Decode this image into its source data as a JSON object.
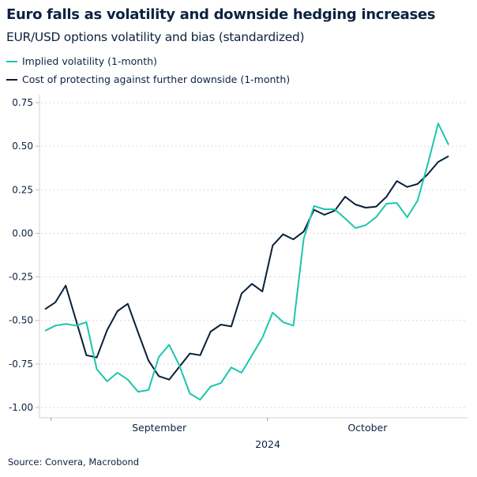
{
  "title": "Euro falls as volatility and downside hedging increases",
  "subtitle": "EUR/USD options volatility and bias (standardized)",
  "source": "Source: Convera, Macrobond",
  "colors": {
    "implied_vol": "#1cc6ad",
    "downside_cost": "#0b1f3a",
    "text": "#0d2240",
    "grid": "#d9d9d9"
  },
  "chart_data": {
    "type": "line",
    "title": "Euro falls as volatility and downside hedging increases",
    "subtitle": "EUR/USD options volatility and bias (standardized)",
    "xlabel": "2024",
    "ylabel": "",
    "ylim": [
      -1.05,
      0.8
    ],
    "yticks": [
      0.75,
      0.5,
      0.25,
      0.0,
      -0.25,
      -0.5,
      -0.75,
      -1.0
    ],
    "ytick_labels": [
      "0.75",
      "0.50",
      "0.25",
      "0.00",
      "-0.25",
      "-0.50",
      "-0.75",
      "-1.00"
    ],
    "xtick_labels": [
      "September",
      "October"
    ],
    "grid": "horizontal dotted",
    "legend": "top-left",
    "x": [
      "2024-08-30",
      "2024-09-02",
      "2024-09-03",
      "2024-09-04",
      "2024-09-05",
      "2024-09-06",
      "2024-09-09",
      "2024-09-10",
      "2024-09-11",
      "2024-09-12",
      "2024-09-13",
      "2024-09-16",
      "2024-09-17",
      "2024-09-18",
      "2024-09-19",
      "2024-09-20",
      "2024-09-23",
      "2024-09-24",
      "2024-09-25",
      "2024-09-26",
      "2024-09-27",
      "2024-09-30",
      "2024-10-01",
      "2024-10-02",
      "2024-10-03",
      "2024-10-04",
      "2024-10-07",
      "2024-10-08",
      "2024-10-09",
      "2024-10-10",
      "2024-10-11",
      "2024-10-14",
      "2024-10-15",
      "2024-10-16",
      "2024-10-17",
      "2024-10-18",
      "2024-10-21",
      "2024-10-22",
      "2024-10-23",
      "2024-10-24"
    ],
    "series": [
      {
        "name": "Implied volatility (1-month)",
        "color": "#1cc6ad",
        "values": [
          -0.56,
          -0.53,
          -0.52,
          -0.53,
          -0.51,
          -0.78,
          -0.85,
          -0.8,
          -0.84,
          -0.91,
          -0.9,
          -0.71,
          -0.64,
          -0.76,
          -0.92,
          -0.955,
          -0.88,
          -0.86,
          -0.77,
          -0.8,
          -0.7,
          -0.6,
          -0.455,
          -0.51,
          -0.53,
          -0.03,
          0.157,
          0.138,
          0.138,
          0.085,
          0.03,
          0.047,
          0.093,
          0.17,
          0.174,
          0.092,
          0.187,
          0.4,
          0.63,
          0.508
        ]
      },
      {
        "name": "Cost of protecting against further downside (1-month)",
        "color": "#0b1f3a",
        "values": [
          -0.436,
          -0.396,
          -0.3,
          -0.5,
          -0.7,
          -0.713,
          -0.556,
          -0.447,
          -0.405,
          -0.57,
          -0.73,
          -0.82,
          -0.84,
          -0.765,
          -0.69,
          -0.7,
          -0.565,
          -0.524,
          -0.535,
          -0.346,
          -0.29,
          -0.334,
          -0.07,
          -0.006,
          -0.035,
          0.01,
          0.135,
          0.106,
          0.13,
          0.21,
          0.165,
          0.147,
          0.153,
          0.21,
          0.3,
          0.266,
          0.283,
          0.34,
          0.41,
          0.443
        ]
      }
    ]
  }
}
